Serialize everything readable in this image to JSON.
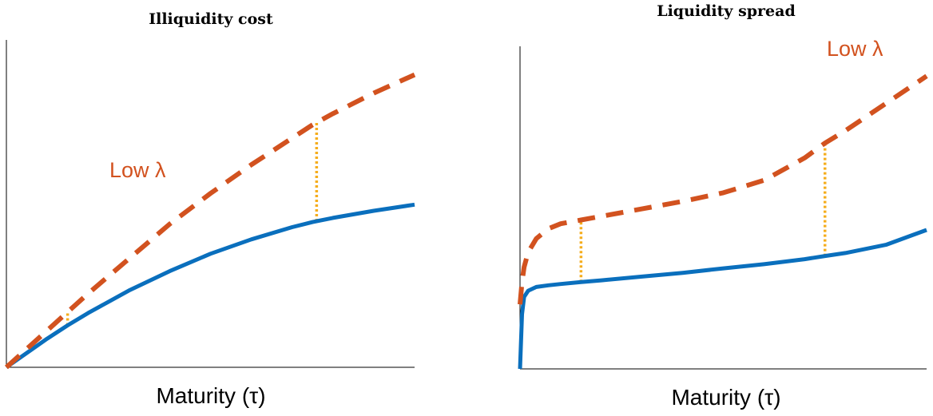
{
  "chart_data": [
    {
      "type": "line",
      "title": "Illiquidity cost",
      "xlabel": "Maturity (τ)",
      "ylabel": "",
      "ticks": "none",
      "colors": {
        "solid": "#0a6fbd",
        "dashed": "#d2521f",
        "gap": "#f5ad1c"
      },
      "annotation": "Low λ",
      "x": [
        0,
        0.05,
        0.1,
        0.15,
        0.2,
        0.3,
        0.4,
        0.5,
        0.6,
        0.7,
        0.75,
        0.8,
        0.9,
        1.0
      ],
      "series": [
        {
          "style": "solid",
          "values": [
            0,
            0.07,
            0.14,
            0.205,
            0.265,
            0.375,
            0.47,
            0.555,
            0.625,
            0.685,
            0.71,
            0.73,
            0.765,
            0.795
          ]
        },
        {
          "style": "dashed",
          "name": "Low λ",
          "values": [
            0,
            0.09,
            0.18,
            0.27,
            0.36,
            0.53,
            0.7,
            0.85,
            0.99,
            1.12,
            1.185,
            1.24,
            1.34,
            1.43
          ]
        }
      ],
      "gap_markers_x": [
        0.15,
        0.76
      ],
      "xlim": [
        0,
        1
      ],
      "ylim": [
        0,
        1.6
      ]
    },
    {
      "type": "line",
      "title": "Liquidity spread",
      "xlabel": "Maturity (τ)",
      "ylabel": "",
      "ticks": "none",
      "colors": {
        "solid": "#0a6fbd",
        "dashed": "#d2521f",
        "gap": "#f5ad1c"
      },
      "annotation": "Low λ",
      "x": [
        0,
        0.005,
        0.01,
        0.02,
        0.04,
        0.07,
        0.1,
        0.15,
        0.2,
        0.3,
        0.4,
        0.5,
        0.6,
        0.7,
        0.75,
        0.8,
        0.9,
        1.0
      ],
      "series": [
        {
          "style": "solid",
          "values": [
            0,
            0.22,
            0.29,
            0.315,
            0.33,
            0.337,
            0.342,
            0.35,
            0.357,
            0.372,
            0.387,
            0.405,
            0.422,
            0.442,
            0.455,
            0.467,
            0.5,
            0.56
          ]
        },
        {
          "style": "dashed",
          "name": "Low λ",
          "values": [
            0.26,
            0.35,
            0.41,
            0.47,
            0.525,
            0.565,
            0.585,
            0.6,
            0.615,
            0.645,
            0.675,
            0.71,
            0.76,
            0.85,
            0.91,
            0.96,
            1.07,
            1.18
          ]
        }
      ],
      "gap_markers_x": [
        0.15,
        0.75
      ],
      "xlim": [
        0,
        1
      ],
      "ylim": [
        0,
        1.3
      ]
    }
  ]
}
